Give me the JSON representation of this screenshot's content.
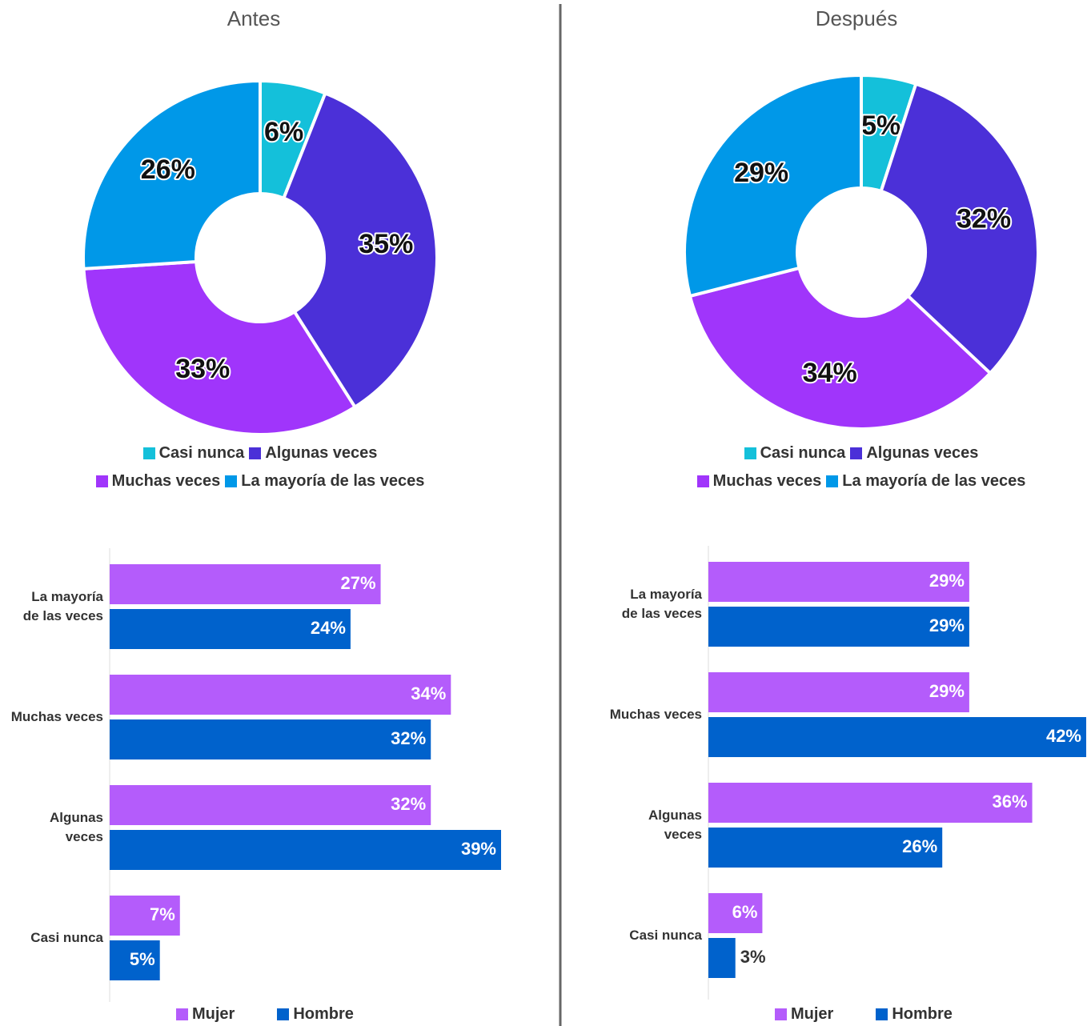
{
  "chart_data": [
    {
      "type": "donut",
      "title": "Antes",
      "categories": [
        "Casi nunca",
        "Algunas veces",
        "Muchas veces",
        "La mayoría de las veces"
      ],
      "values": [
        6,
        35,
        33,
        26
      ],
      "value_labels": [
        "6%",
        "35%",
        "33%",
        "26%"
      ],
      "colors": [
        "#14c0da",
        "#4b30d8",
        "#a035fb",
        "#0098e8"
      ]
    },
    {
      "type": "donut",
      "title": "Después",
      "categories": [
        "Casi nunca",
        "Algunas veces",
        "Muchas veces",
        "La mayoría de las veces"
      ],
      "values": [
        5,
        32,
        34,
        29
      ],
      "value_labels": [
        "5%",
        "32%",
        "34%",
        "29%"
      ],
      "colors": [
        "#14c0da",
        "#4b30d8",
        "#a035fb",
        "#0098e8"
      ]
    },
    {
      "type": "barh",
      "categories": [
        "La mayoría\nde las veces",
        "Muchas veces",
        "Algunas\nveces",
        "Casi nunca"
      ],
      "series": [
        {
          "name": "Mujer",
          "color": "#b45cfb",
          "values": [
            27,
            34,
            32,
            7
          ],
          "value_labels": [
            "27%",
            "34%",
            "32%",
            "7%"
          ]
        },
        {
          "name": "Hombre",
          "color": "#0062cc",
          "values": [
            24,
            32,
            39,
            5
          ],
          "value_labels": [
            "24%",
            "32%",
            "39%",
            "5%"
          ]
        }
      ]
    },
    {
      "type": "barh",
      "categories": [
        "La mayoría\nde las veces",
        "Muchas veces",
        "Algunas\nveces",
        "Casi nunca"
      ],
      "series": [
        {
          "name": "Mujer",
          "color": "#b45cfb",
          "values": [
            29,
            29,
            36,
            6
          ],
          "value_labels": [
            "29%",
            "29%",
            "36%",
            "6%"
          ]
        },
        {
          "name": "Hombre",
          "color": "#0062cc",
          "values": [
            29,
            42,
            26,
            3
          ],
          "value_labels": [
            "29%",
            "42%",
            "26%",
            "3%"
          ]
        }
      ]
    }
  ]
}
